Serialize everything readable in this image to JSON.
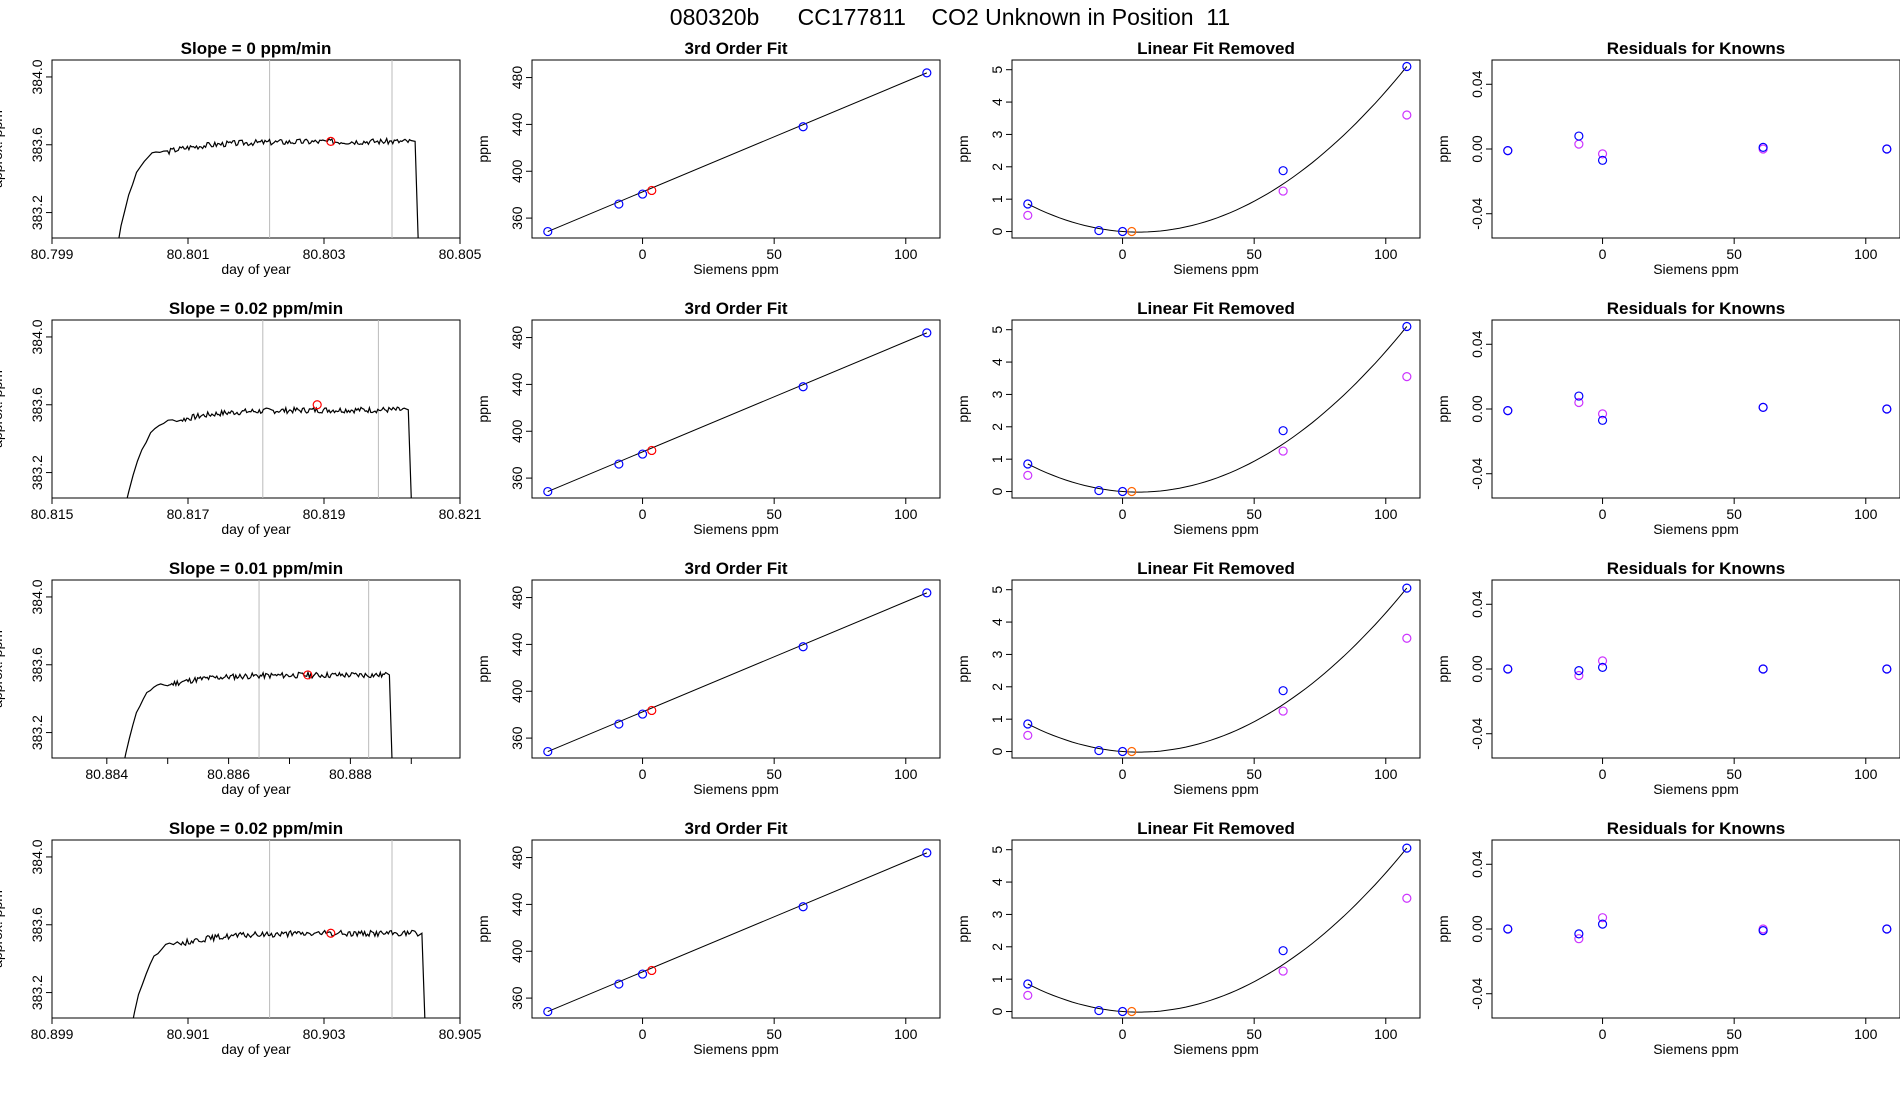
{
  "figure_title": "080320b      CC177811    CO2 Unknown in Position  11",
  "colors": {
    "trace": "#000000",
    "guide_lines": "#bbbbbb",
    "unknown_point": "#ff0000",
    "known_point": "#0000ff",
    "residual_alt": "#cc33ff",
    "unknown_fit_point": "#ff6600"
  },
  "chart_data": [
    {
      "type": "line",
      "title": "Slope =  0  ppm/min",
      "xlabel": "day of year",
      "ylabel": "approx. ppm",
      "xlim": [
        80.799,
        80.805
      ],
      "ylim": [
        383.05,
        384.1
      ],
      "xticks": [
        80.799,
        80.801,
        80.803,
        80.805
      ],
      "xticklabels": [
        "80.799",
        "80.801",
        "80.803",
        "80.805"
      ],
      "yticks": [
        383.2,
        383.6,
        384.0
      ],
      "yticklabels": [
        "383.2",
        "383.6",
        "384.0"
      ],
      "guides": [
        80.8022,
        80.804
      ],
      "trace": {
        "start": 80.7999,
        "rise_end": 80.8007,
        "plateau": 383.62,
        "end": 80.8044
      },
      "unknown_point": {
        "x": 80.8031,
        "y": 383.62
      }
    },
    {
      "type": "scatter",
      "title": "3rd Order Fit",
      "xlabel": "Siemens ppm",
      "ylabel": "ppm",
      "xlim": [
        -42,
        113
      ],
      "ylim": [
        343,
        495
      ],
      "xticks": [
        0,
        50,
        100
      ],
      "yticks": [
        360,
        400,
        440,
        480
      ],
      "fit_line": [
        [
          -36,
          348.5
        ],
        [
          108,
          484
        ]
      ],
      "known_points": [
        {
          "x": -36,
          "y": 348.5
        },
        {
          "x": -9,
          "y": 372
        },
        {
          "x": 0,
          "y": 380.5
        },
        {
          "x": 61,
          "y": 438
        },
        {
          "x": 108,
          "y": 484
        }
      ],
      "unknown_point": {
        "x": 3.5,
        "y": 383.6
      }
    },
    {
      "type": "scatter",
      "title": "Linear Fit Removed",
      "xlabel": "Siemens ppm",
      "ylabel": "ppm",
      "xlim": [
        -42,
        113
      ],
      "ylim": [
        -0.2,
        5.3
      ],
      "xticks": [
        0,
        50,
        100
      ],
      "yticks": [
        0,
        1,
        2,
        3,
        4,
        5
      ],
      "known_points": [
        {
          "x": -36,
          "y": 0.85
        },
        {
          "x": -9,
          "y": 0.03
        },
        {
          "x": 0,
          "y": 0.0
        },
        {
          "x": 61,
          "y": 1.88
        },
        {
          "x": 108,
          "y": 5.1
        }
      ],
      "alt_points": [
        {
          "x": -36,
          "y": 0.5
        },
        {
          "x": 61,
          "y": 1.25
        },
        {
          "x": 108,
          "y": 3.6
        }
      ],
      "unknown_point": {
        "x": 3.5,
        "y": 0.0
      }
    },
    {
      "type": "scatter",
      "title": "Residuals for Knowns",
      "xlabel": "Siemens ppm",
      "ylabel": "ppm",
      "xlim": [
        -42,
        113
      ],
      "ylim": [
        -0.055,
        0.055
      ],
      "xticks": [
        0,
        50,
        100
      ],
      "yticks": [
        -0.04,
        0.0,
        0.04
      ],
      "yticklabels": [
        "-0.04",
        "0.00",
        "0.04"
      ],
      "known_points": [
        {
          "x": -36,
          "y": -0.001
        },
        {
          "x": -9,
          "y": 0.008
        },
        {
          "x": 0,
          "y": -0.007
        },
        {
          "x": 61,
          "y": 0.001
        },
        {
          "x": 108,
          "y": 0.0
        }
      ],
      "alt_points": [
        {
          "x": -36,
          "y": -0.001
        },
        {
          "x": -9,
          "y": 0.003
        },
        {
          "x": 0,
          "y": -0.003
        },
        {
          "x": 61,
          "y": 0.0
        },
        {
          "x": 108,
          "y": 0.0
        }
      ]
    },
    {
      "type": "line",
      "title": "Slope =  0.02  ppm/min",
      "xlabel": "day of year",
      "ylabel": "approx. ppm",
      "xlim": [
        80.815,
        80.821
      ],
      "ylim": [
        383.05,
        384.1
      ],
      "xticks": [
        80.815,
        80.817,
        80.819,
        80.821
      ],
      "xticklabels": [
        "80.815",
        "80.817",
        "80.819",
        "80.821"
      ],
      "yticks": [
        383.2,
        383.6,
        384.0
      ],
      "yticklabels": [
        "383.2",
        "383.6",
        "384.0"
      ],
      "guides": [
        80.8181,
        80.8198
      ],
      "trace": {
        "start": 80.816,
        "rise_end": 80.8169,
        "plateau": 383.57,
        "end": 80.8203
      },
      "unknown_point": {
        "x": 80.8189,
        "y": 383.6
      }
    },
    {
      "type": "scatter",
      "title": "3rd Order Fit",
      "xlabel": "Siemens ppm",
      "ylabel": "ppm",
      "xlim": [
        -42,
        113
      ],
      "ylim": [
        343,
        495
      ],
      "xticks": [
        0,
        50,
        100
      ],
      "yticks": [
        360,
        400,
        440,
        480
      ],
      "fit_line": [
        [
          -36,
          348.5
        ],
        [
          108,
          484
        ]
      ],
      "known_points": [
        {
          "x": -36,
          "y": 348.5
        },
        {
          "x": -9,
          "y": 372
        },
        {
          "x": 0,
          "y": 380.5
        },
        {
          "x": 61,
          "y": 438
        },
        {
          "x": 108,
          "y": 484
        }
      ],
      "unknown_point": {
        "x": 3.5,
        "y": 383.6
      }
    },
    {
      "type": "scatter",
      "title": "Linear Fit Removed",
      "xlabel": "Siemens ppm",
      "ylabel": "ppm",
      "xlim": [
        -42,
        113
      ],
      "ylim": [
        -0.2,
        5.3
      ],
      "xticks": [
        0,
        50,
        100
      ],
      "yticks": [
        0,
        1,
        2,
        3,
        4,
        5
      ],
      "known_points": [
        {
          "x": -36,
          "y": 0.85
        },
        {
          "x": -9,
          "y": 0.03
        },
        {
          "x": 0,
          "y": 0.0
        },
        {
          "x": 61,
          "y": 1.88
        },
        {
          "x": 108,
          "y": 5.1
        }
      ],
      "alt_points": [
        {
          "x": -36,
          "y": 0.5
        },
        {
          "x": 61,
          "y": 1.25
        },
        {
          "x": 108,
          "y": 3.55
        }
      ],
      "unknown_point": {
        "x": 3.5,
        "y": 0.0
      }
    },
    {
      "type": "scatter",
      "title": "Residuals for Knowns",
      "xlabel": "Siemens ppm",
      "ylabel": "ppm",
      "xlim": [
        -42,
        113
      ],
      "ylim": [
        -0.055,
        0.055
      ],
      "xticks": [
        0,
        50,
        100
      ],
      "yticks": [
        -0.04,
        0.0,
        0.04
      ],
      "yticklabels": [
        "-0.04",
        "0.00",
        "0.04"
      ],
      "known_points": [
        {
          "x": -36,
          "y": -0.001
        },
        {
          "x": -9,
          "y": 0.008
        },
        {
          "x": 0,
          "y": -0.007
        },
        {
          "x": 61,
          "y": 0.001
        },
        {
          "x": 108,
          "y": 0.0
        }
      ],
      "alt_points": [
        {
          "x": -36,
          "y": -0.001
        },
        {
          "x": -9,
          "y": 0.004
        },
        {
          "x": 0,
          "y": -0.003
        },
        {
          "x": 61,
          "y": 0.001
        },
        {
          "x": 108,
          "y": 0.0
        }
      ]
    },
    {
      "type": "line",
      "title": "Slope =  0.01  ppm/min",
      "xlabel": "day of year",
      "ylabel": "approx. ppm",
      "xlim": [
        80.8831,
        80.8898
      ],
      "ylim": [
        383.05,
        384.1
      ],
      "xticks": [
        80.884,
        80.885,
        80.886,
        80.887,
        80.888,
        80.889
      ],
      "xticklabels": [
        "80.884",
        "",
        "80.886",
        "",
        "80.888",
        ""
      ],
      "yticks": [
        383.2,
        383.6,
        384.0
      ],
      "yticklabels": [
        "383.2",
        "383.6",
        "384.0"
      ],
      "guides": [
        80.8865,
        80.8883
      ],
      "trace": {
        "start": 80.8842,
        "rise_end": 80.885,
        "plateau": 383.54,
        "end": 80.8887
      },
      "unknown_point": {
        "x": 80.8873,
        "y": 383.54
      }
    },
    {
      "type": "scatter",
      "title": "3rd Order Fit",
      "xlabel": "Siemens ppm",
      "ylabel": "ppm",
      "xlim": [
        -42,
        113
      ],
      "ylim": [
        343,
        495
      ],
      "xticks": [
        0,
        50,
        100
      ],
      "yticks": [
        360,
        400,
        440,
        480
      ],
      "fit_line": [
        [
          -36,
          348.5
        ],
        [
          108,
          484
        ]
      ],
      "known_points": [
        {
          "x": -36,
          "y": 348.5
        },
        {
          "x": -9,
          "y": 372
        },
        {
          "x": 0,
          "y": 380.5
        },
        {
          "x": 61,
          "y": 438
        },
        {
          "x": 108,
          "y": 484
        }
      ],
      "unknown_point": {
        "x": 3.5,
        "y": 383.6
      }
    },
    {
      "type": "scatter",
      "title": "Linear Fit Removed",
      "xlabel": "Siemens ppm",
      "ylabel": "ppm",
      "xlim": [
        -42,
        113
      ],
      "ylim": [
        -0.2,
        5.3
      ],
      "xticks": [
        0,
        50,
        100
      ],
      "yticks": [
        0,
        1,
        2,
        3,
        4,
        5
      ],
      "known_points": [
        {
          "x": -36,
          "y": 0.85
        },
        {
          "x": -9,
          "y": 0.03
        },
        {
          "x": 0,
          "y": 0.0
        },
        {
          "x": 61,
          "y": 1.88
        },
        {
          "x": 108,
          "y": 5.05
        }
      ],
      "alt_points": [
        {
          "x": -36,
          "y": 0.5
        },
        {
          "x": 61,
          "y": 1.25
        },
        {
          "x": 108,
          "y": 3.5
        }
      ],
      "unknown_point": {
        "x": 3.5,
        "y": 0.0
      }
    },
    {
      "type": "scatter",
      "title": "Residuals for Knowns",
      "xlabel": "Siemens ppm",
      "ylabel": "ppm",
      "xlim": [
        -42,
        113
      ],
      "ylim": [
        -0.055,
        0.055
      ],
      "xticks": [
        0,
        50,
        100
      ],
      "yticks": [
        -0.04,
        0.0,
        0.04
      ],
      "yticklabels": [
        "-0.04",
        "0.00",
        "0.04"
      ],
      "known_points": [
        {
          "x": -36,
          "y": 0.0
        },
        {
          "x": -9,
          "y": -0.001
        },
        {
          "x": 0,
          "y": 0.001
        },
        {
          "x": 61,
          "y": 0.0
        },
        {
          "x": 108,
          "y": 0.0
        }
      ],
      "alt_points": [
        {
          "x": -36,
          "y": 0.0
        },
        {
          "x": -9,
          "y": -0.004
        },
        {
          "x": 0,
          "y": 0.005
        },
        {
          "x": 61,
          "y": 0.0
        },
        {
          "x": 108,
          "y": 0.0
        }
      ]
    },
    {
      "type": "line",
      "title": "Slope =  0.02  ppm/min",
      "xlabel": "day of year",
      "ylabel": "approx. ppm",
      "xlim": [
        80.899,
        80.905
      ],
      "ylim": [
        383.05,
        384.1
      ],
      "xticks": [
        80.899,
        80.901,
        80.903,
        80.905
      ],
      "xticklabels": [
        "80.899",
        "80.901",
        "80.903",
        "80.905"
      ],
      "yticks": [
        383.2,
        383.6,
        384.0
      ],
      "yticklabels": [
        "383.2",
        "383.6",
        "384.0"
      ],
      "guides": [
        80.9022,
        80.904
      ],
      "trace": {
        "start": 80.9001,
        "rise_end": 80.9009,
        "plateau": 383.55,
        "end": 80.9045
      },
      "unknown_point": {
        "x": 80.9031,
        "y": 383.55
      }
    },
    {
      "type": "scatter",
      "title": "3rd Order Fit",
      "xlabel": "Siemens ppm",
      "ylabel": "ppm",
      "xlim": [
        -42,
        113
      ],
      "ylim": [
        343,
        495
      ],
      "xticks": [
        0,
        50,
        100
      ],
      "yticks": [
        360,
        400,
        440,
        480
      ],
      "fit_line": [
        [
          -36,
          348.5
        ],
        [
          108,
          484
        ]
      ],
      "known_points": [
        {
          "x": -36,
          "y": 348.5
        },
        {
          "x": -9,
          "y": 372
        },
        {
          "x": 0,
          "y": 380.5
        },
        {
          "x": 61,
          "y": 438
        },
        {
          "x": 108,
          "y": 484
        }
      ],
      "unknown_point": {
        "x": 3.5,
        "y": 383.6
      }
    },
    {
      "type": "scatter",
      "title": "Linear Fit Removed",
      "xlabel": "Siemens ppm",
      "ylabel": "ppm",
      "xlim": [
        -42,
        113
      ],
      "ylim": [
        -0.2,
        5.3
      ],
      "xticks": [
        0,
        50,
        100
      ],
      "yticks": [
        0,
        1,
        2,
        3,
        4,
        5
      ],
      "known_points": [
        {
          "x": -36,
          "y": 0.85
        },
        {
          "x": -9,
          "y": 0.03
        },
        {
          "x": 0,
          "y": 0.0
        },
        {
          "x": 61,
          "y": 1.88
        },
        {
          "x": 108,
          "y": 5.05
        }
      ],
      "alt_points": [
        {
          "x": -36,
          "y": 0.5
        },
        {
          "x": 61,
          "y": 1.25
        },
        {
          "x": 108,
          "y": 3.5
        }
      ],
      "unknown_point": {
        "x": 3.5,
        "y": 0.0
      }
    },
    {
      "type": "scatter",
      "title": "Residuals for Knowns",
      "xlabel": "Siemens ppm",
      "ylabel": "ppm",
      "xlim": [
        -42,
        113
      ],
      "ylim": [
        -0.055,
        0.055
      ],
      "xticks": [
        0,
        50,
        100
      ],
      "yticks": [
        -0.04,
        0.0,
        0.04
      ],
      "yticklabels": [
        "-0.04",
        "0.00",
        "0.04"
      ],
      "known_points": [
        {
          "x": -36,
          "y": 0.0
        },
        {
          "x": -9,
          "y": -0.003
        },
        {
          "x": 0,
          "y": 0.003
        },
        {
          "x": 61,
          "y": -0.001
        },
        {
          "x": 108,
          "y": 0.0
        }
      ],
      "alt_points": [
        {
          "x": -36,
          "y": 0.0
        },
        {
          "x": -9,
          "y": -0.006
        },
        {
          "x": 0,
          "y": 0.007
        },
        {
          "x": 61,
          "y": 0.0
        },
        {
          "x": 108,
          "y": 0.0
        }
      ]
    }
  ]
}
